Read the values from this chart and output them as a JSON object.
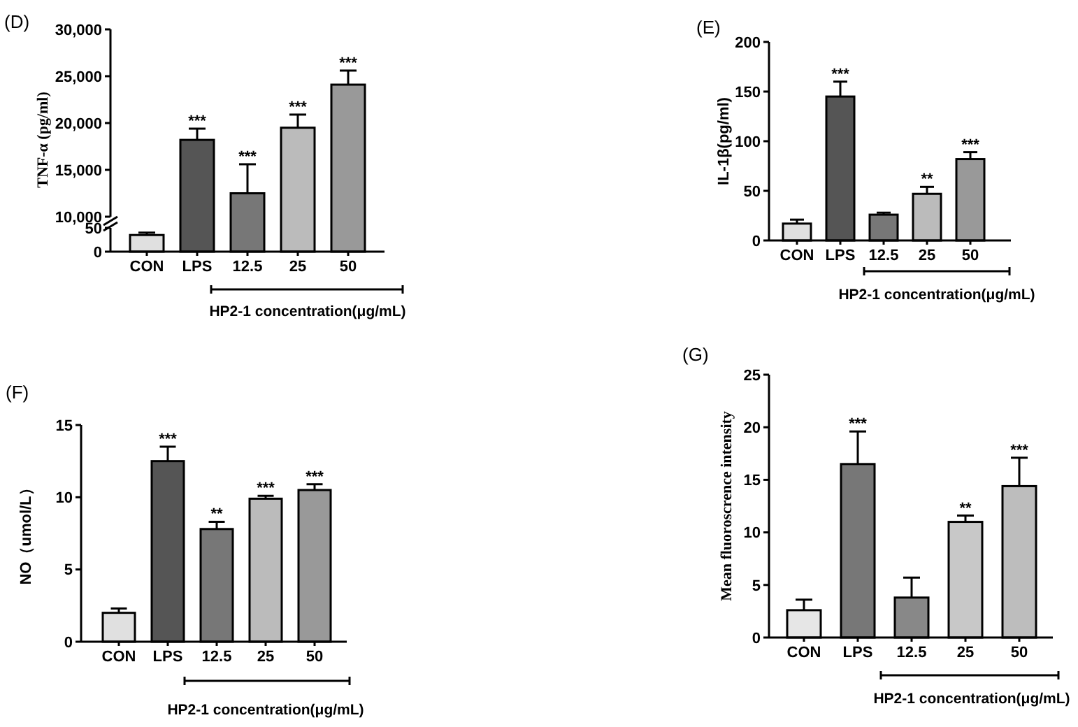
{
  "chart_data": [
    {
      "type": "bar",
      "title": "(D)",
      "ylabel": "TNF-α (pg/ml)",
      "categories": [
        "CON",
        "LPS",
        "12.5",
        "25",
        "50"
      ],
      "values": [
        null,
        18200,
        12500,
        19500,
        24100
      ],
      "errors": [
        null,
        1200,
        3100,
        1400,
        1500
      ],
      "colors": [
        null,
        "#555555",
        "#777777",
        "#bbbbbb",
        "#999999"
      ],
      "ylim": [
        10000,
        30000
      ],
      "yticks": [
        {
          "value": 10000,
          "label": "10,000"
        },
        {
          "value": 15000,
          "label": "15,000"
        },
        {
          "value": 20000,
          "label": "20,000"
        },
        {
          "value": 25000,
          "label": "25,000"
        },
        {
          "value": 30000,
          "label": "30,000"
        }
      ],
      "tick_labels": "y",
      "legend": false,
      "grid": false,
      "annotations": [
        {
          "text": "***",
          "x": "LPS",
          "y": 19400
        },
        {
          "text": "***",
          "x": "12.5",
          "y": 15600
        },
        {
          "text": "***",
          "x": "25",
          "y": 20900
        },
        {
          "text": "***",
          "x": "50",
          "y": 25600
        }
      ]
    },
    {
      "type": "bar",
      "xlabel": "HP2-1 concentration(μg/mL)",
      "categories": [
        "CON",
        "LPS",
        "12.5",
        "25",
        "50"
      ],
      "values": [
        35,
        null,
        null,
        null,
        null
      ],
      "errors": [
        5,
        null,
        null,
        null,
        null
      ],
      "colors": [
        "#e0e0e0",
        null,
        null,
        null,
        null
      ],
      "ylim": [
        0,
        50
      ],
      "yticks": [
        0,
        50
      ],
      "legend": false,
      "grid": false
    },
    {
      "type": "bar",
      "title": "(E)",
      "ylabel": "IL-1β(pg/ml)",
      "xlabel": "HP2-1 concentration(μg/mL)",
      "categories": [
        "CON",
        "LPS",
        "12.5",
        "25",
        "50"
      ],
      "values": [
        17,
        145,
        26,
        47,
        82
      ],
      "errors": [
        4,
        15,
        2,
        7,
        7
      ],
      "colors": [
        "#e0e0e0",
        "#555555",
        "#777777",
        "#bbbbbb",
        "#999999"
      ],
      "ylim": [
        0,
        200
      ],
      "yticks": [
        0,
        50,
        100,
        150,
        200
      ],
      "legend": false,
      "grid": false,
      "annotations": [
        {
          "text": "***",
          "x": "LPS",
          "y": 160
        },
        {
          "text": "**",
          "x": "25",
          "y": 54
        },
        {
          "text": "***",
          "x": "50",
          "y": 89
        }
      ]
    },
    {
      "type": "bar",
      "title": "(F)",
      "ylabel": "NO（umol/L）",
      "xlabel": "HP2-1 concentration(μg/mL)",
      "categories": [
        "CON",
        "LPS",
        "12.5",
        "25",
        "50"
      ],
      "values": [
        2.0,
        12.5,
        7.8,
        9.9,
        10.5
      ],
      "errors": [
        0.3,
        1.0,
        0.5,
        0.2,
        0.4
      ],
      "colors": [
        "#e0e0e0",
        "#555555",
        "#777777",
        "#bbbbbb",
        "#999999"
      ],
      "ylim": [
        0,
        15
      ],
      "yticks": [
        0,
        5,
        10,
        15
      ],
      "legend": false,
      "grid": false,
      "annotations": [
        {
          "text": "***",
          "x": "LPS",
          "y": 13.5
        },
        {
          "text": "**",
          "x": "12.5",
          "y": 8.3
        },
        {
          "text": "***",
          "x": "25",
          "y": 10.1
        },
        {
          "text": "***",
          "x": "50",
          "y": 10.9
        }
      ]
    },
    {
      "type": "bar",
      "title": "(G)",
      "ylabel": "Mean fluoroscrence intensity",
      "xlabel": "HP2-1 concentration(μg/mL)",
      "categories": [
        "CON",
        "LPS",
        "12.5",
        "25",
        "50"
      ],
      "values": [
        2.6,
        16.5,
        3.8,
        11.0,
        14.4
      ],
      "errors": [
        1.0,
        3.1,
        1.9,
        0.6,
        2.7
      ],
      "colors": [
        "#e6e6e6",
        "#777777",
        "#888888",
        "#c8c8c8",
        "#bdbdbd"
      ],
      "ylim": [
        0,
        25
      ],
      "yticks": [
        0,
        5,
        10,
        15,
        20,
        25
      ],
      "legend": false,
      "grid": false,
      "annotations": [
        {
          "text": "***",
          "x": "LPS",
          "y": 19.6
        },
        {
          "text": "**",
          "x": "25",
          "y": 11.6
        },
        {
          "text": "***",
          "x": "50",
          "y": 17.1
        }
      ]
    }
  ]
}
